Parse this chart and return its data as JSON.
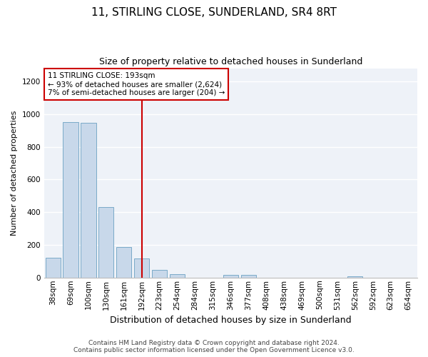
{
  "title": "11, STIRLING CLOSE, SUNDERLAND, SR4 8RT",
  "subtitle": "Size of property relative to detached houses in Sunderland",
  "xlabel": "Distribution of detached houses by size in Sunderland",
  "ylabel": "Number of detached properties",
  "categories": [
    "38sqm",
    "69sqm",
    "100sqm",
    "130sqm",
    "161sqm",
    "192sqm",
    "223sqm",
    "254sqm",
    "284sqm",
    "315sqm",
    "346sqm",
    "377sqm",
    "408sqm",
    "438sqm",
    "469sqm",
    "500sqm",
    "531sqm",
    "562sqm",
    "592sqm",
    "623sqm",
    "654sqm"
  ],
  "values": [
    120,
    950,
    945,
    430,
    185,
    115,
    47,
    20,
    0,
    0,
    18,
    18,
    0,
    0,
    0,
    0,
    0,
    8,
    0,
    0,
    0
  ],
  "bar_color": "#c8d8ea",
  "bar_edge_color": "#7aaac8",
  "vline_index": 5,
  "vline_color": "#cc0000",
  "annotation_line1": "11 STIRLING CLOSE: 193sqm",
  "annotation_line2": "← 93% of detached houses are smaller (2,624)",
  "annotation_line3": "7% of semi-detached houses are larger (204) →",
  "annotation_box_facecolor": "#ffffff",
  "annotation_box_edgecolor": "#cc0000",
  "footer_line1": "Contains HM Land Registry data © Crown copyright and database right 2024.",
  "footer_line2": "Contains public sector information licensed under the Open Government Licence v3.0.",
  "ylim": [
    0,
    1280
  ],
  "yticks": [
    0,
    200,
    400,
    600,
    800,
    1000,
    1200
  ],
  "plot_bg_color": "#eef2f8",
  "fig_bg_color": "#ffffff",
  "grid_color": "#ffffff",
  "title_fontsize": 11,
  "subtitle_fontsize": 9,
  "ylabel_fontsize": 8,
  "xlabel_fontsize": 9,
  "tick_fontsize": 7.5,
  "footer_fontsize": 6.5
}
